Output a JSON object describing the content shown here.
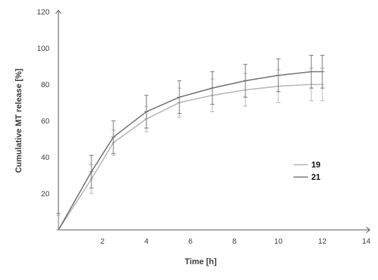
{
  "chart_data": {
    "type": "line",
    "xlabel": "Time [h]",
    "ylabel": "Cumulative MT release [%]",
    "xlim": [
      0,
      14
    ],
    "ylim": [
      0,
      120
    ],
    "xticks": [
      "2",
      "4",
      "6",
      "8",
      "10",
      "12",
      "14"
    ],
    "yticks": [
      "20",
      "40",
      "60",
      "80",
      "100",
      "120"
    ],
    "legend_position": "right",
    "series": [
      {
        "name": "19",
        "color": "#b3b3b3",
        "x": [
          0,
          1.5,
          2.5,
          4,
          5.5,
          7,
          8.5,
          10,
          11.5,
          12
        ],
        "y": [
          0,
          28,
          48,
          61,
          70,
          74,
          77,
          79,
          80,
          80
        ],
        "err": [
          8,
          8,
          7,
          7,
          8,
          9,
          9,
          9,
          9,
          9
        ]
      },
      {
        "name": "21",
        "color": "#6e6e6e",
        "x": [
          0,
          1.5,
          2.5,
          4,
          5.5,
          7,
          8.5,
          10,
          11.5,
          12
        ],
        "y": [
          0,
          32,
          51,
          65,
          73,
          78,
          82,
          85,
          87,
          87
        ],
        "err": [
          9,
          9,
          9,
          9,
          9,
          9,
          9,
          9,
          9,
          9
        ]
      }
    ]
  }
}
